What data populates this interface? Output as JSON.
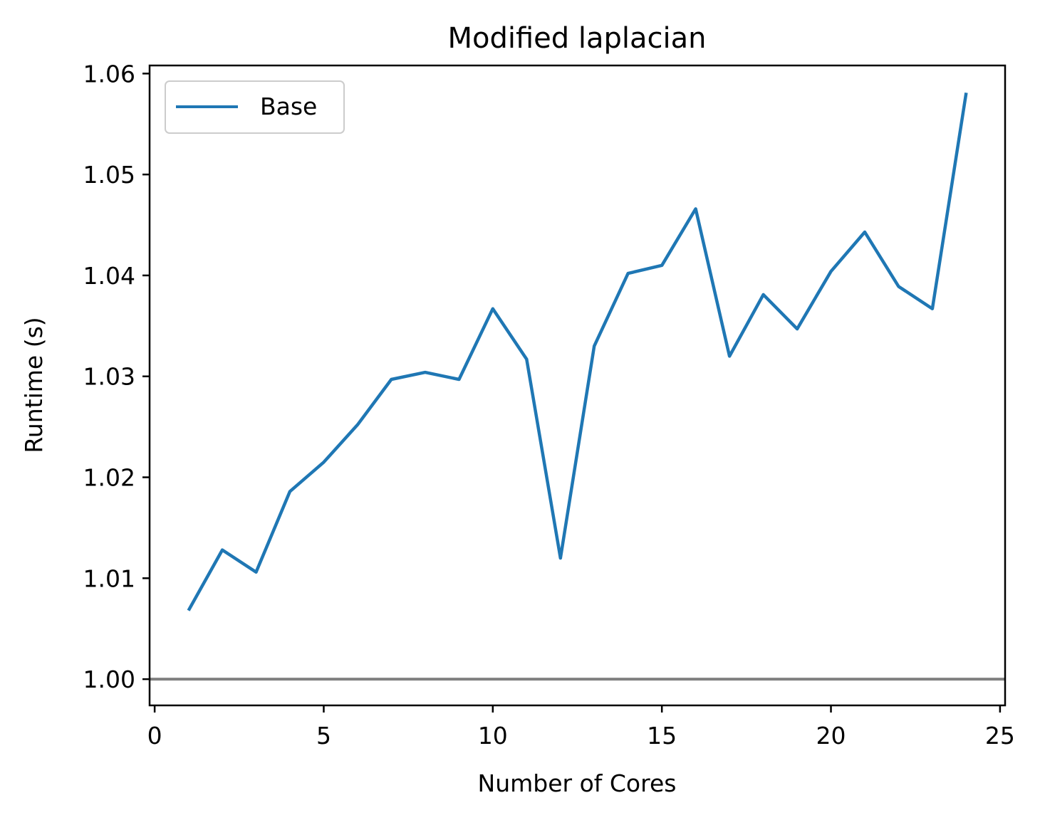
{
  "chart_data": {
    "type": "line",
    "title": "Modified laplacian",
    "xlabel": "Number of Cores",
    "ylabel": "Runtime (s)",
    "xlim": [
      -0.15,
      25.15
    ],
    "ylim": [
      0.9974,
      1.0608
    ],
    "x_ticks": [
      0,
      5,
      10,
      15,
      20,
      25
    ],
    "x_tick_labels": [
      "0",
      "5",
      "10",
      "15",
      "20",
      "25"
    ],
    "y_ticks": [
      1.0,
      1.01,
      1.02,
      1.03,
      1.04,
      1.05,
      1.06
    ],
    "y_tick_labels": [
      "1.00",
      "1.01",
      "1.02",
      "1.03",
      "1.04",
      "1.05",
      "1.06"
    ],
    "grid": false,
    "legend_position": "top-left",
    "series": [
      {
        "name": "Base",
        "color": "#1f77b4",
        "x": [
          1,
          2,
          3,
          4,
          5,
          6,
          7,
          8,
          9,
          10,
          11,
          12,
          13,
          14,
          15,
          16,
          17,
          18,
          19,
          20,
          21,
          22,
          23,
          24
        ],
        "y": [
          1.0068,
          1.0128,
          1.0106,
          1.0186,
          1.0215,
          1.0252,
          1.0297,
          1.0304,
          1.0297,
          1.0367,
          1.0317,
          1.012,
          1.033,
          1.0402,
          1.041,
          1.0466,
          1.032,
          1.0381,
          1.0347,
          1.0404,
          1.0443,
          1.0389,
          1.0367,
          1.0581
        ]
      }
    ],
    "reference_lines": [
      {
        "axis": "y",
        "value": 1.0,
        "color": "#808080"
      }
    ]
  }
}
